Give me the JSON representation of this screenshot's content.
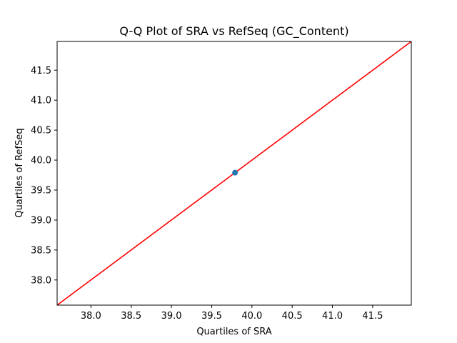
{
  "chart_data": {
    "type": "scatter",
    "title": "Q-Q Plot of SRA vs RefSeq (GC_Content)",
    "xlabel": "Quartiles of SRA",
    "ylabel": "Quartiles of RefSeq",
    "xlim": [
      37.58,
      41.98
    ],
    "ylim": [
      37.58,
      41.98
    ],
    "xticks": [
      38.0,
      38.5,
      39.0,
      39.5,
      40.0,
      40.5,
      41.0,
      41.5
    ],
    "yticks": [
      38.0,
      38.5,
      39.0,
      39.5,
      40.0,
      40.5,
      41.0,
      41.5
    ],
    "xtick_labels": [
      "38.0",
      "38.5",
      "39.0",
      "39.5",
      "40.0",
      "40.5",
      "41.0",
      "41.5"
    ],
    "ytick_labels": [
      "38.0",
      "38.5",
      "39.0",
      "39.5",
      "40.0",
      "40.5",
      "41.0",
      "41.5"
    ],
    "points": [
      {
        "x": 39.79,
        "y": 39.79
      }
    ],
    "reference_line": {
      "x": [
        37.58,
        41.98
      ],
      "y": [
        37.58,
        41.98
      ]
    },
    "grid": false,
    "colors": {
      "point": "#1f77b4",
      "reference_line": "#ff0000",
      "axes": "#000000"
    }
  }
}
